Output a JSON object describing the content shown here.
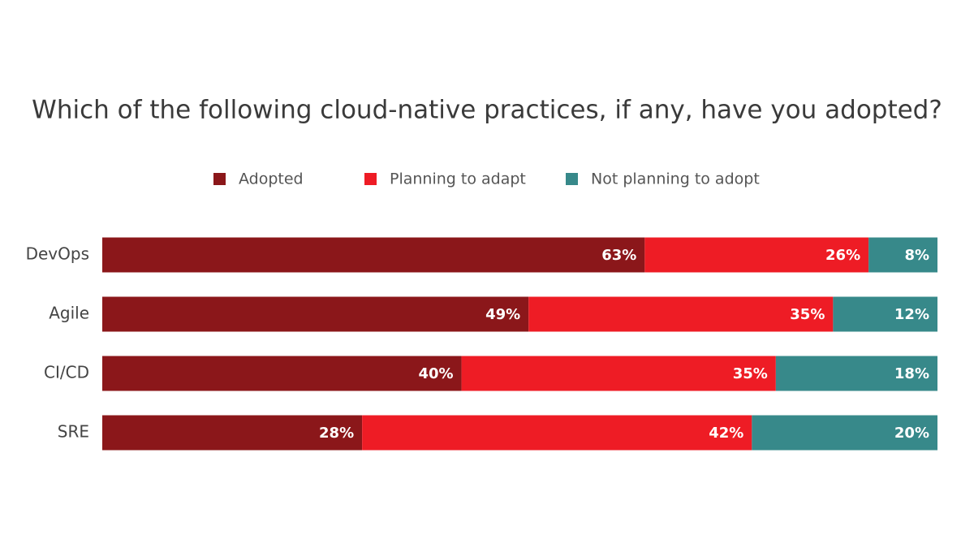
{
  "chart_data": {
    "type": "stacked-bar-horizontal",
    "title": "Which of the following cloud-native practices, if any, have you adopted?",
    "categories": [
      "DevOps",
      "Agile",
      "CI/CD",
      "SRE"
    ],
    "stack": "percent",
    "series": [
      {
        "name": "Adopted",
        "color": "#8b171a",
        "values": [
          63,
          49,
          40,
          28
        ],
        "value_labels": [
          "63%",
          "49%",
          "40%",
          "28%"
        ]
      },
      {
        "name": "Planning to adapt",
        "color": "#ee1c25",
        "values": [
          26,
          35,
          35,
          42
        ],
        "value_labels": [
          "26%",
          "35%",
          "35%",
          "42%"
        ]
      },
      {
        "name": "Not planning to adopt",
        "color": "#37898a",
        "values": [
          8,
          12,
          18,
          20
        ],
        "value_labels": [
          "8%",
          "12%",
          "18%",
          "20%"
        ]
      }
    ]
  }
}
